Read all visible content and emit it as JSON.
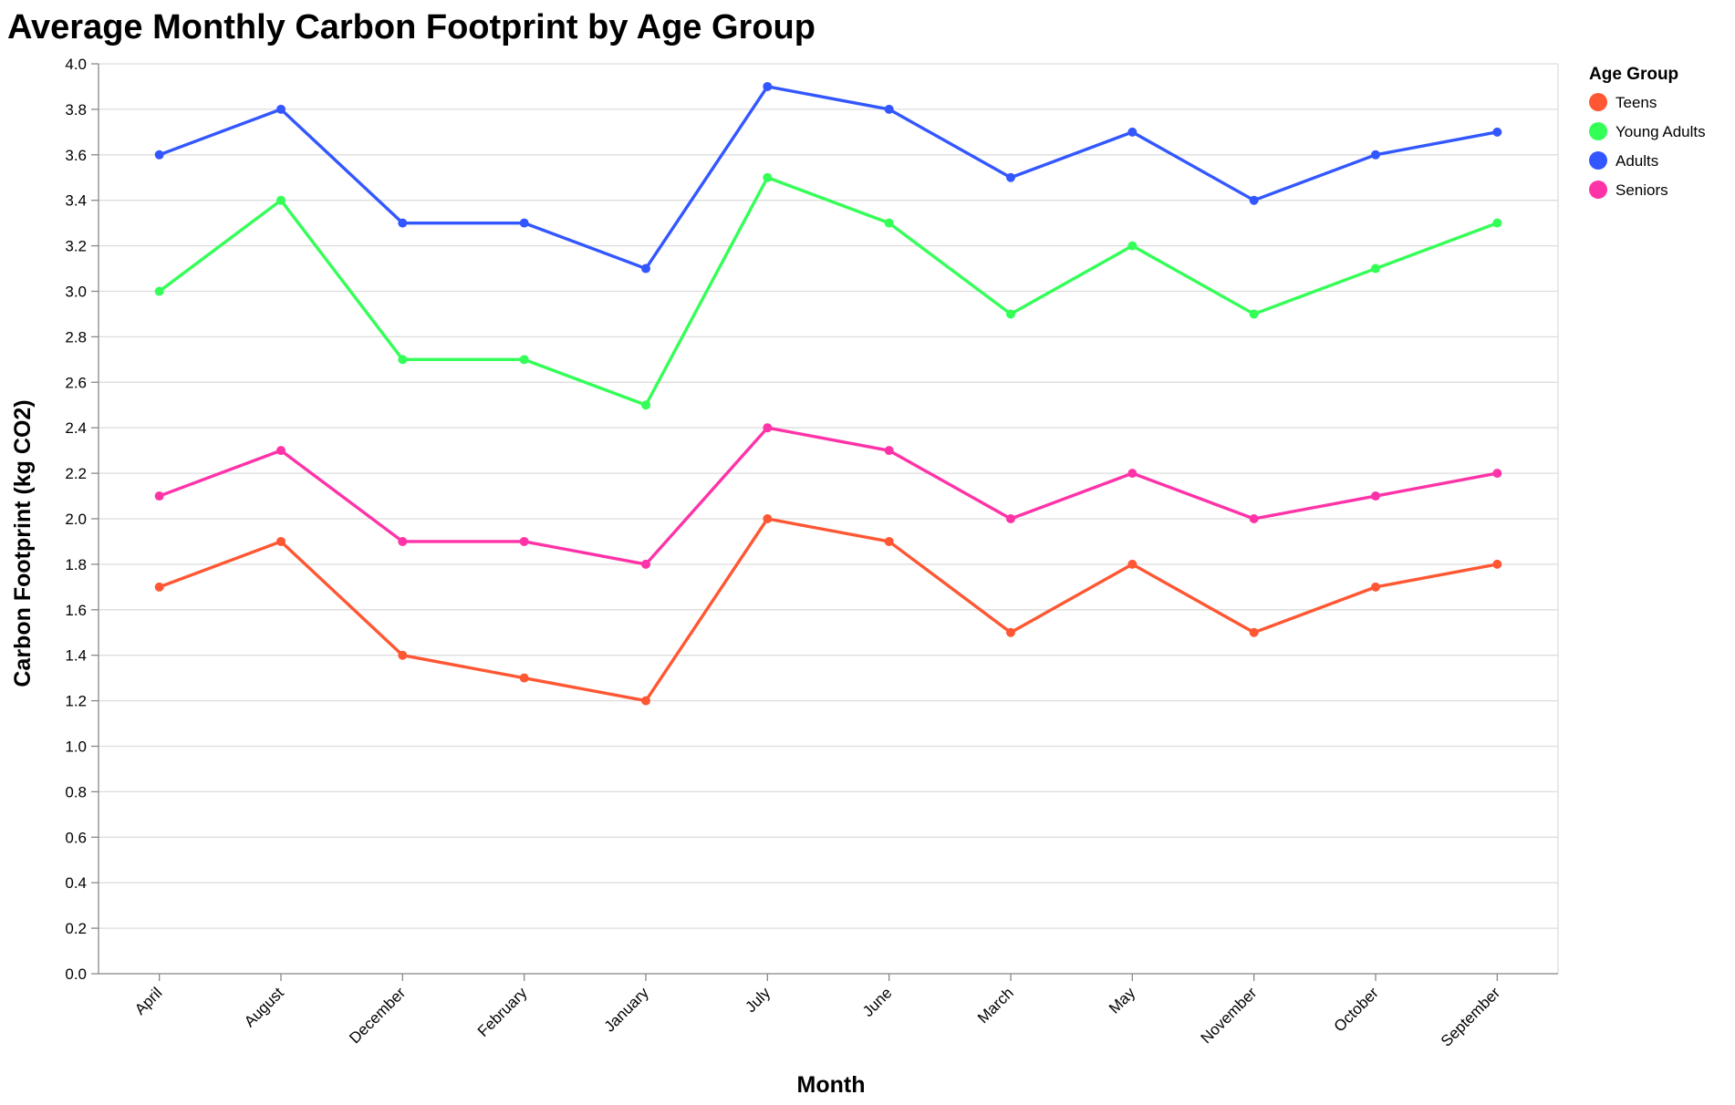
{
  "chart_data": {
    "type": "line",
    "title": "Average Monthly Carbon Footprint by Age Group",
    "xlabel": "Month",
    "ylabel": "Carbon Footprint (kg CO2)",
    "ylim": [
      0,
      4
    ],
    "y_ticks": [
      "0.0",
      "0.2",
      "0.4",
      "0.6",
      "0.8",
      "1.0",
      "1.2",
      "1.4",
      "1.6",
      "1.8",
      "2.0",
      "2.2",
      "2.4",
      "2.6",
      "2.8",
      "3.0",
      "3.2",
      "3.4",
      "3.6",
      "3.8",
      "4.0"
    ],
    "grid": true,
    "legend_title": "Age Group",
    "legend_position": "top-right",
    "categories": [
      "April",
      "August",
      "December",
      "February",
      "January",
      "July",
      "June",
      "March",
      "May",
      "November",
      "October",
      "September"
    ],
    "series": [
      {
        "name": "Teens",
        "color": "#ff5733",
        "values": [
          1.7,
          1.9,
          1.4,
          1.3,
          1.2,
          2.0,
          1.9,
          1.5,
          1.8,
          1.5,
          1.7,
          1.8
        ]
      },
      {
        "name": "Young Adults",
        "color": "#33ff57",
        "values": [
          3.0,
          3.4,
          2.7,
          2.7,
          2.5,
          3.5,
          3.3,
          2.9,
          3.2,
          2.9,
          3.1,
          3.3
        ]
      },
      {
        "name": "Adults",
        "color": "#3357ff",
        "values": [
          3.6,
          3.8,
          3.3,
          3.3,
          3.1,
          3.9,
          3.8,
          3.5,
          3.7,
          3.4,
          3.6,
          3.7
        ]
      },
      {
        "name": "Seniors",
        "color": "#ff33a8",
        "values": [
          2.1,
          2.3,
          1.9,
          1.9,
          1.8,
          2.4,
          2.3,
          2.0,
          2.2,
          2.0,
          2.1,
          2.2
        ]
      }
    ]
  }
}
